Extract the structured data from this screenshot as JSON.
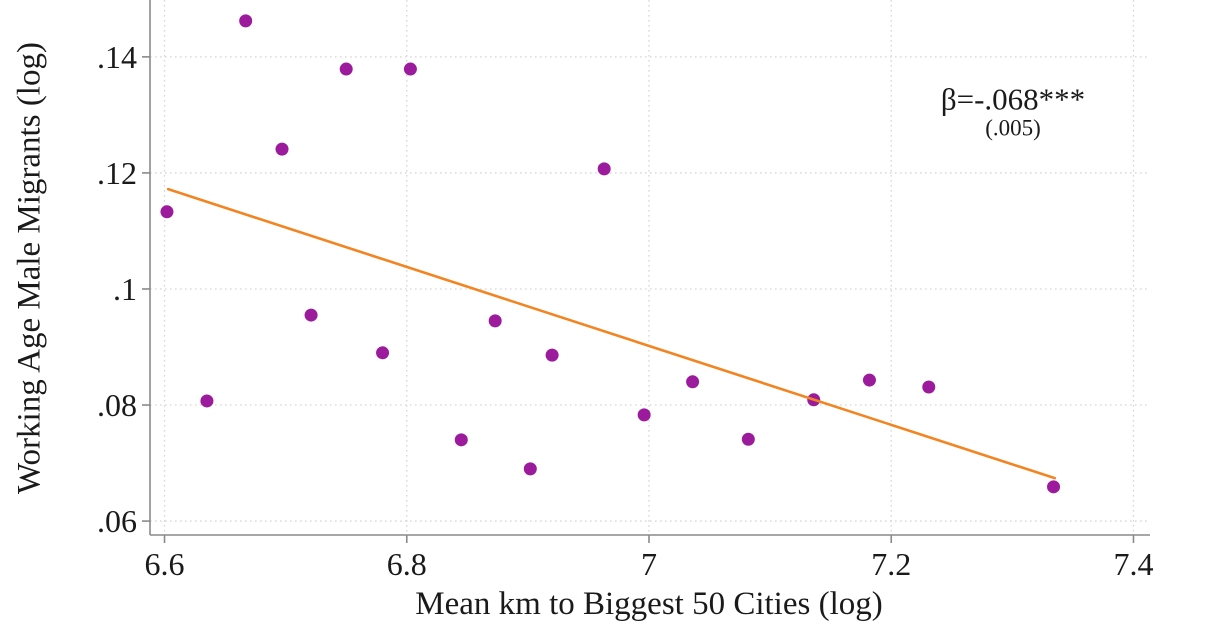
{
  "figure": {
    "colors": {
      "dot": "#9c1b9c",
      "fit_line": "#f28522",
      "grid": "#d6d6d6",
      "axis": "#8a8a8a",
      "text": "#1a1a1a",
      "background": "#ffffff"
    }
  },
  "chart_data": {
    "type": "scatter",
    "title": "",
    "xlabel": "Mean km to Biggest 50 Cities (log)",
    "ylabel": "Working Age Male Migrants (log)",
    "xlim": [
      6.588,
      7.412
    ],
    "ylim": [
      0.0576,
      0.1498
    ],
    "grid": true,
    "legend": "none",
    "xticks": {
      "values": [
        6.6,
        6.8,
        7.0,
        7.2,
        7.4
      ],
      "labels": [
        "6.6",
        "6.8",
        "7",
        "7.2",
        "7.4"
      ]
    },
    "yticks": {
      "values": [
        0.06,
        0.08,
        0.1,
        0.12,
        0.14
      ],
      "labels": [
        ".06",
        ".08",
        ".1",
        ".12",
        ".14"
      ]
    },
    "points": [
      [
        6.602,
        0.1133
      ],
      [
        6.635,
        0.0807
      ],
      [
        6.667,
        0.1462
      ],
      [
        6.697,
        0.1241
      ],
      [
        6.721,
        0.0955
      ],
      [
        6.75,
        0.1379
      ],
      [
        6.78,
        0.089
      ],
      [
        6.803,
        0.1379
      ],
      [
        6.845,
        0.074
      ],
      [
        6.873,
        0.0945
      ],
      [
        6.902,
        0.069
      ],
      [
        6.92,
        0.0886
      ],
      [
        6.963,
        0.1207
      ],
      [
        6.996,
        0.0783
      ],
      [
        7.036,
        0.084
      ],
      [
        7.082,
        0.0741
      ],
      [
        7.136,
        0.0809
      ],
      [
        7.182,
        0.0843
      ],
      [
        7.231,
        0.0831
      ],
      [
        7.334,
        0.0659
      ]
    ],
    "fit_line": {
      "x": [
        6.603,
        7.335
      ],
      "y": [
        0.1172,
        0.0674
      ]
    },
    "annotation": {
      "line1": "β=-.068***",
      "line2": "(.005)"
    }
  }
}
